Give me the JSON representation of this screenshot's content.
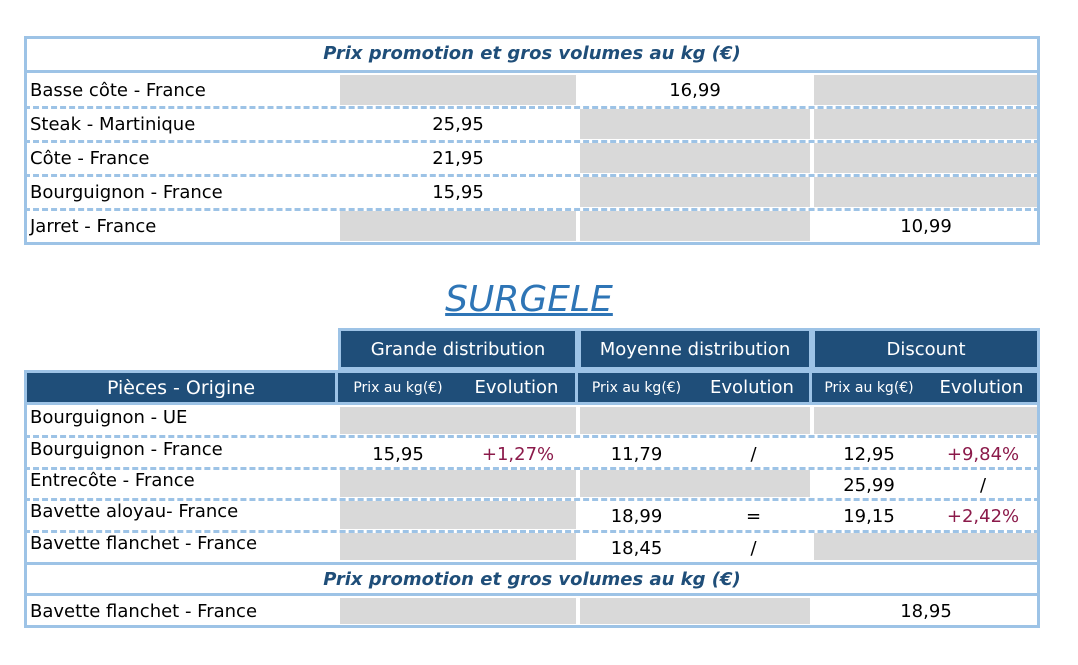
{
  "top_table": {
    "header": "Prix promotion et gros volumes au kg (€)",
    "rows": [
      {
        "label": "Basse côte - France",
        "values": [
          null,
          "16,99",
          null
        ]
      },
      {
        "label": "Steak - Martinique",
        "values": [
          "25,95",
          null,
          null
        ]
      },
      {
        "label": "Côte - France",
        "values": [
          "21,95",
          null,
          null
        ]
      },
      {
        "label": "Bourguignon - France",
        "values": [
          "15,95",
          null,
          null
        ]
      },
      {
        "label": "Jarret - France",
        "values": [
          null,
          null,
          "10,99"
        ]
      }
    ]
  },
  "title": "SURGELE",
  "bottom_table": {
    "groups": [
      "Grande distribution",
      "Moyenne distribution",
      "Discount"
    ],
    "row_header": "Pièces - Origine",
    "subheaders": [
      "Prix au kg(€)",
      "Evolution",
      "Prix au kg(€)",
      "Evolution",
      "Prix au kg(€)",
      "Evolution"
    ],
    "rows": [
      {
        "label": "Bourguignon - UE",
        "values": [
          null,
          null,
          null,
          null,
          null,
          null
        ]
      },
      {
        "label": "Bourguignon - France",
        "values": [
          "15,95",
          "+1,27%",
          "11,79",
          "/",
          "12,95",
          "+9,84%"
        ]
      },
      {
        "label": "Entrecôte - France",
        "values": [
          null,
          null,
          null,
          null,
          "25,99",
          "/"
        ]
      },
      {
        "label": "Bavette aloyau- France",
        "values": [
          null,
          null,
          "18,99",
          "=",
          "19,15",
          "+2,42%"
        ]
      },
      {
        "label": "Bavette flanchet - France",
        "values": [
          null,
          null,
          "18,45",
          "/",
          null,
          null
        ]
      }
    ],
    "promo_header": "Prix promotion et gros volumes au kg (€)",
    "promo_rows": [
      {
        "label": "Bavette flanchet - France",
        "values": [
          null,
          null,
          "18,95"
        ]
      }
    ]
  }
}
